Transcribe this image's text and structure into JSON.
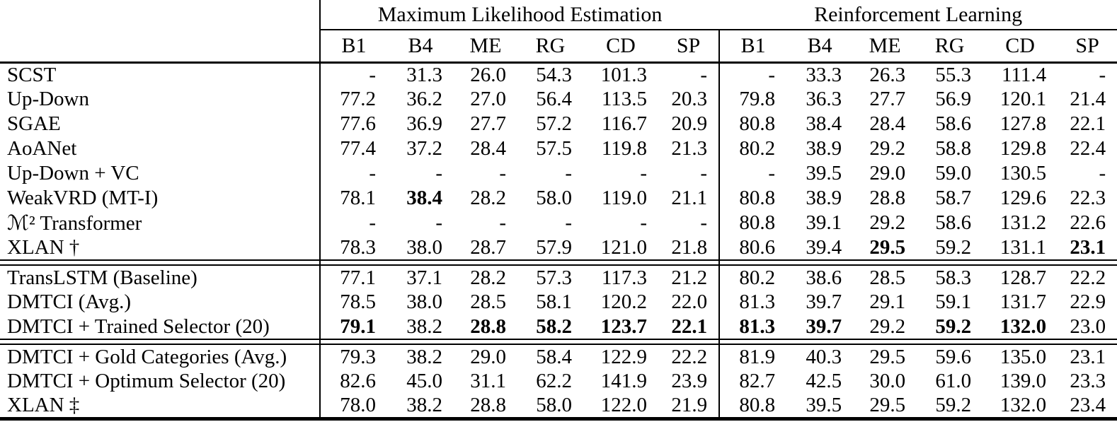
{
  "table": {
    "group_headers": [
      {
        "label": "Maximum Likelihood Estimation"
      },
      {
        "label": "Reinforcement Learning"
      }
    ],
    "metric_columns": [
      "B1",
      "B4",
      "ME",
      "RG",
      "CD",
      "SP"
    ],
    "sections": [
      {
        "name": "prior-work",
        "rows": [
          {
            "label": "SCST",
            "mle": [
              "-",
              "31.3",
              "26.0",
              "54.3",
              "101.3",
              "-"
            ],
            "rl": [
              "-",
              "33.3",
              "26.3",
              "55.3",
              "111.4",
              "-"
            ],
            "bold_mle": [],
            "bold_rl": []
          },
          {
            "label": "Up-Down",
            "mle": [
              "77.2",
              "36.2",
              "27.0",
              "56.4",
              "113.5",
              "20.3"
            ],
            "rl": [
              "79.8",
              "36.3",
              "27.7",
              "56.9",
              "120.1",
              "21.4"
            ],
            "bold_mle": [],
            "bold_rl": []
          },
          {
            "label": "SGAE",
            "mle": [
              "77.6",
              "36.9",
              "27.7",
              "57.2",
              "116.7",
              "20.9"
            ],
            "rl": [
              "80.8",
              "38.4",
              "28.4",
              "58.6",
              "127.8",
              "22.1"
            ],
            "bold_mle": [],
            "bold_rl": []
          },
          {
            "label": "AoANet",
            "mle": [
              "77.4",
              "37.2",
              "28.4",
              "57.5",
              "119.8",
              "21.3"
            ],
            "rl": [
              "80.2",
              "38.9",
              "29.2",
              "58.8",
              "129.8",
              "22.4"
            ],
            "bold_mle": [],
            "bold_rl": []
          },
          {
            "label": "Up-Down + VC",
            "mle": [
              "-",
              "-",
              "-",
              "-",
              "-",
              "-"
            ],
            "rl": [
              "-",
              "39.5",
              "29.0",
              "59.0",
              "130.5",
              "-"
            ],
            "bold_mle": [],
            "bold_rl": []
          },
          {
            "label": "WeakVRD (MT-I)",
            "mle": [
              "78.1",
              "38.4",
              "28.2",
              "58.0",
              "119.0",
              "21.1"
            ],
            "rl": [
              "80.8",
              "38.9",
              "28.8",
              "58.7",
              "129.6",
              "22.3"
            ],
            "bold_mle": [
              1
            ],
            "bold_rl": []
          },
          {
            "label": "ℳ² Transformer",
            "mle": [
              "-",
              "-",
              "-",
              "-",
              "-",
              "-"
            ],
            "rl": [
              "80.8",
              "39.1",
              "29.2",
              "58.6",
              "131.2",
              "22.6"
            ],
            "bold_mle": [],
            "bold_rl": []
          },
          {
            "label": "XLAN †",
            "mle": [
              "78.3",
              "38.0",
              "28.7",
              "57.9",
              "121.0",
              "21.8"
            ],
            "rl": [
              "80.6",
              "39.4",
              "29.5",
              "59.2",
              "131.1",
              "23.1"
            ],
            "bold_mle": [],
            "bold_rl": [
              2,
              5
            ]
          }
        ]
      },
      {
        "name": "ours",
        "rows": [
          {
            "label": "TransLSTM (Baseline)",
            "mle": [
              "77.1",
              "37.1",
              "28.2",
              "57.3",
              "117.3",
              "21.2"
            ],
            "rl": [
              "80.2",
              "38.6",
              "28.5",
              "58.3",
              "128.7",
              "22.2"
            ],
            "bold_mle": [],
            "bold_rl": []
          },
          {
            "label": "DMTCI (Avg.)",
            "mle": [
              "78.5",
              "38.0",
              "28.5",
              "58.1",
              "120.2",
              "22.0"
            ],
            "rl": [
              "81.3",
              "39.7",
              "29.1",
              "59.1",
              "131.7",
              "22.9"
            ],
            "bold_mle": [],
            "bold_rl": []
          },
          {
            "label": "DMTCI + Trained Selector (20)",
            "mle": [
              "79.1",
              "38.2",
              "28.8",
              "58.2",
              "123.7",
              "22.1"
            ],
            "rl": [
              "81.3",
              "39.7",
              "29.2",
              "59.2",
              "132.0",
              "23.0"
            ],
            "bold_mle": [
              0,
              2,
              3,
              4,
              5
            ],
            "bold_rl": [
              0,
              1,
              3,
              4
            ]
          }
        ]
      },
      {
        "name": "upper-bounds",
        "rows": [
          {
            "label": "DMTCI + Gold Categories (Avg.)",
            "mle": [
              "79.3",
              "38.2",
              "29.0",
              "58.4",
              "122.9",
              "22.2"
            ],
            "rl": [
              "81.9",
              "40.3",
              "29.5",
              "59.6",
              "135.0",
              "23.1"
            ],
            "bold_mle": [],
            "bold_rl": []
          },
          {
            "label": "DMTCI + Optimum Selector (20)",
            "mle": [
              "82.6",
              "45.0",
              "31.1",
              "62.2",
              "141.9",
              "23.9"
            ],
            "rl": [
              "82.7",
              "42.5",
              "30.0",
              "61.0",
              "139.0",
              "23.3"
            ],
            "bold_mle": [],
            "bold_rl": []
          },
          {
            "label": "XLAN ‡",
            "mle": [
              "78.0",
              "38.2",
              "28.8",
              "58.0",
              "122.0",
              "21.9"
            ],
            "rl": [
              "80.8",
              "39.5",
              "29.5",
              "59.2",
              "132.0",
              "23.4"
            ],
            "bold_mle": [],
            "bold_rl": []
          }
        ]
      }
    ]
  }
}
